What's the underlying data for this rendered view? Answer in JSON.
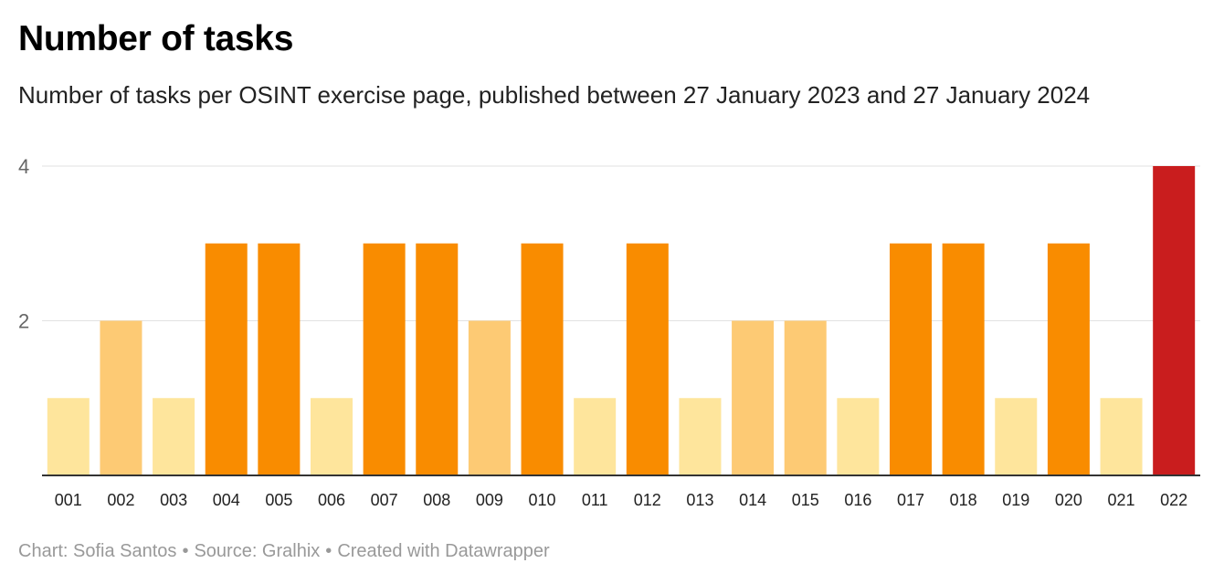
{
  "header": {
    "title": "Number of tasks",
    "subtitle": "Number of tasks per OSINT exercise page, published between 27 January 2023 and 27 January 2024"
  },
  "footer": {
    "chart_credit": "Chart: Sofia Santos",
    "separator": "•",
    "source": "Source: Gralhix",
    "created_with": "Created with Datawrapper"
  },
  "colors": {
    "value_1": "#fee59c",
    "value_2": "#fdca74",
    "value_3": "#f98c00",
    "value_4": "#c91d1e",
    "gridline": "#e2e2e2",
    "baseline": "#333333",
    "tick_label": "#666666"
  },
  "chart_data": {
    "type": "bar",
    "title": "Number of tasks",
    "subtitle": "Number of tasks per OSINT exercise page, published between 27 January 2023 and 27 January 2024",
    "xlabel": "",
    "ylabel": "",
    "categories": [
      "001",
      "002",
      "003",
      "004",
      "005",
      "006",
      "007",
      "008",
      "009",
      "010",
      "011",
      "012",
      "013",
      "014",
      "015",
      "016",
      "017",
      "018",
      "019",
      "020",
      "021",
      "022"
    ],
    "values": [
      1,
      2,
      1,
      3,
      3,
      1,
      3,
      3,
      2,
      3,
      1,
      3,
      1,
      2,
      2,
      1,
      3,
      3,
      1,
      3,
      1,
      4
    ],
    "ylim": [
      0,
      4
    ],
    "yticks": [
      2,
      4
    ],
    "grid": true,
    "legend": "none"
  }
}
